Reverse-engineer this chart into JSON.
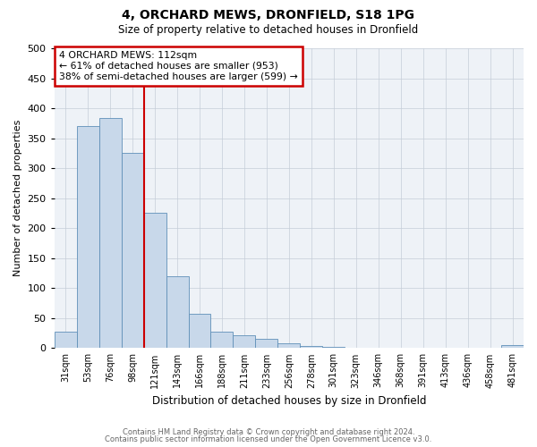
{
  "title": "4, ORCHARD MEWS, DRONFIELD, S18 1PG",
  "subtitle": "Size of property relative to detached houses in Dronfield",
  "xlabel": "Distribution of detached houses by size in Dronfield",
  "ylabel": "Number of detached properties",
  "bin_labels": [
    "31sqm",
    "53sqm",
    "76sqm",
    "98sqm",
    "121sqm",
    "143sqm",
    "166sqm",
    "188sqm",
    "211sqm",
    "233sqm",
    "256sqm",
    "278sqm",
    "301sqm",
    "323sqm",
    "346sqm",
    "368sqm",
    "391sqm",
    "413sqm",
    "436sqm",
    "458sqm",
    "481sqm"
  ],
  "bar_heights": [
    28,
    370,
    383,
    325,
    225,
    120,
    58,
    28,
    22,
    16,
    8,
    3,
    2,
    0,
    0,
    0,
    0,
    0,
    0,
    0,
    5
  ],
  "bar_color": "#c8d8ea",
  "bar_edge_color": "#6090b8",
  "vline_color": "#cc0000",
  "vline_position": 3.5,
  "ylim": [
    0,
    500
  ],
  "yticks": [
    0,
    50,
    100,
    150,
    200,
    250,
    300,
    350,
    400,
    450,
    500
  ],
  "annotation_title": "4 ORCHARD MEWS: 112sqm",
  "annotation_line1": "← 61% of detached houses are smaller (953)",
  "annotation_line2": "38% of semi-detached houses are larger (599) →",
  "annotation_box_color": "#cc0000",
  "footer_line1": "Contains HM Land Registry data © Crown copyright and database right 2024.",
  "footer_line2": "Contains public sector information licensed under the Open Government Licence v3.0.",
  "plot_bg_color": "#eef2f7",
  "grid_color": "#c5cdd8"
}
